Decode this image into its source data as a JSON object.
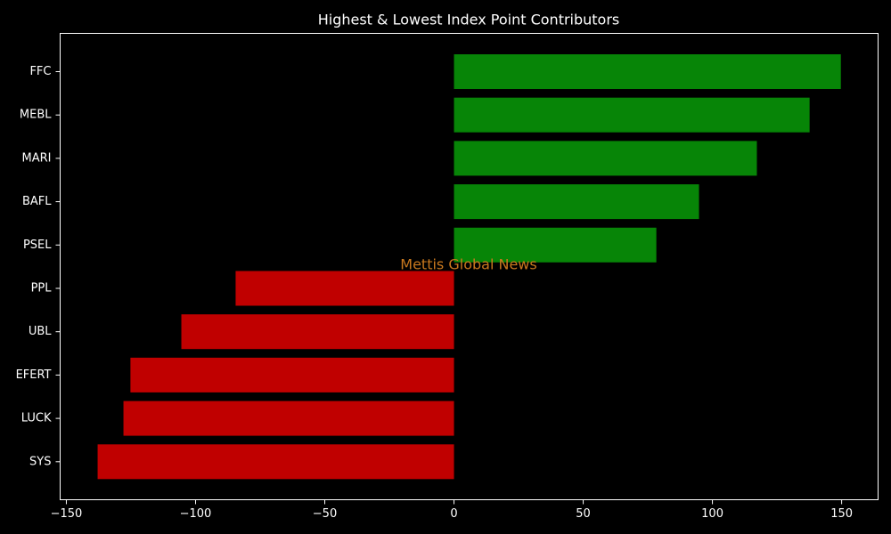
{
  "chart_data": {
    "type": "barh",
    "title": "Highest & Lowest Index Point Contributors",
    "watermark": "Mettis Global News",
    "categories": [
      "FFC",
      "MEBL",
      "MARI",
      "BAFL",
      "PSEL",
      "PPL",
      "UBL",
      "EFERT",
      "LUCK",
      "SYS"
    ],
    "values": [
      149.7,
      137.6,
      117.2,
      94.8,
      78.3,
      -84.5,
      -105.5,
      -125.2,
      -127.9,
      -137.9
    ],
    "positive_color": "#078507",
    "negative_color": "#c00000",
    "xlim": [
      -152.4,
      164.1
    ],
    "xticks": [
      {
        "value": -150,
        "label": "−150"
      },
      {
        "value": -100,
        "label": "−100"
      },
      {
        "value": -50,
        "label": "−50"
      },
      0,
      50,
      100,
      150
    ],
    "grid": false
  }
}
